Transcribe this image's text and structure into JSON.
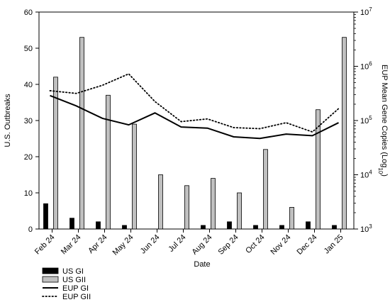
{
  "chart_data": {
    "type": "bar-line-combo",
    "categories": [
      "Feb 24",
      "Mar 24",
      "Apr 24",
      "May 24",
      "Jun 24",
      "Jul 24",
      "Aug 24",
      "Sep 24",
      "Oct 24",
      "Nov 24",
      "Dec 24",
      "Jan 25"
    ],
    "xlabel": "Date",
    "ylabel_left": "U.S. Outbreaks",
    "ylabel_right": "EUP Mean Gene Copies (Log",
    "ylabel_right_sub": "10",
    "ylabel_right_close": ")",
    "ylim_left": [
      0,
      60
    ],
    "yticks_left": [
      "0",
      "10",
      "20",
      "30",
      "40",
      "50",
      "60"
    ],
    "ylim_right_log10": [
      3,
      7
    ],
    "yticks_right": [
      {
        "base": "10",
        "exp": "3"
      },
      {
        "base": "10",
        "exp": "4"
      },
      {
        "base": "10",
        "exp": "5"
      },
      {
        "base": "10",
        "exp": "6"
      },
      {
        "base": "10",
        "exp": "7"
      }
    ],
    "bar_series": [
      {
        "name": "US GI",
        "color": "#000000",
        "values": [
          7,
          3,
          2,
          1,
          0,
          0,
          1,
          2,
          1,
          1,
          2,
          1
        ]
      },
      {
        "name": "US GII",
        "color": "#c0c0c0",
        "values": [
          42,
          53,
          37,
          29,
          15,
          12,
          14,
          10,
          22,
          6,
          33,
          53
        ]
      }
    ],
    "line_series": [
      {
        "name": "EUP GI",
        "style": "solid",
        "log10_values": [
          5.46,
          5.27,
          5.04,
          4.92,
          5.14,
          4.88,
          4.86,
          4.7,
          4.67,
          4.75,
          4.72,
          4.96
        ]
      },
      {
        "name": "EUP GII",
        "style": "dotted",
        "log10_values": [
          5.55,
          5.5,
          5.65,
          5.86,
          5.35,
          4.98,
          5.03,
          4.87,
          4.85,
          4.96,
          4.79,
          5.22
        ]
      }
    ],
    "legend_position": "bottom-left",
    "grid": false
  }
}
